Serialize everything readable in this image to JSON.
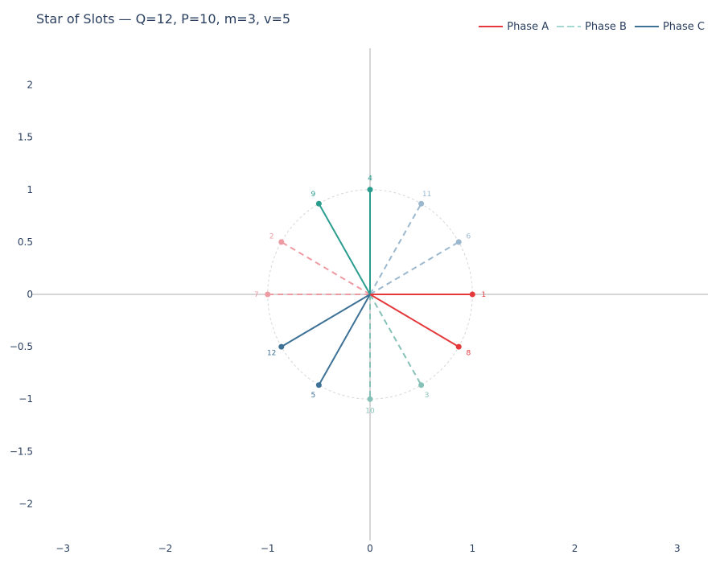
{
  "title": "Star of Slots — Q=12, P=10, m=3, v=5",
  "legend": [
    {
      "name": "Phase A",
      "color": "#e5383b",
      "dash": "solid"
    },
    {
      "name": "Phase B",
      "color": "#a3d9d1",
      "dash": "dash"
    },
    {
      "name": "Phase C",
      "color": "#3d7196",
      "dash": "solid"
    }
  ],
  "chart_data": {
    "type": "scatter",
    "title": "Star of Slots — Q=12, P=10, m=3, v=5",
    "xlabel": "",
    "ylabel": "",
    "xlim": [
      -3.3,
      3.3
    ],
    "ylim": [
      -2.35,
      2.35
    ],
    "x_ticks": [
      -3,
      -2,
      -1,
      0,
      1,
      2,
      3
    ],
    "y_ticks": [
      -2,
      -1.5,
      -1,
      -0.5,
      0,
      0.5,
      1,
      1.5,
      2
    ],
    "x_tick_labels": [
      "−3",
      "−2",
      "−1",
      "0",
      "1",
      "2",
      "3"
    ],
    "y_tick_labels": [
      "−2",
      "−1.5",
      "−1",
      "−0.5",
      "0",
      "0.5",
      "1",
      "1.5",
      "2"
    ],
    "grid": false,
    "unit_circle": true,
    "legend_position": "top-right",
    "colors": {
      "phase_a_pos": "#e5383b",
      "phase_a_neg": "#ee9aa2",
      "phase_b_pos": "#2a9d8f",
      "phase_b_neg": "#86c1b8",
      "phase_c_pos": "#3d7196",
      "phase_c_neg": "#9bb8ce",
      "zero_line": "#c8c8c8",
      "circle": "#d6d6d6"
    },
    "slots": [
      {
        "label": "1",
        "x": 1.0,
        "y": 0.0,
        "phase": "A",
        "polarity": "+"
      },
      {
        "label": "2",
        "x": -0.866,
        "y": 0.5,
        "phase": "A",
        "polarity": "-"
      },
      {
        "label": "3",
        "x": 0.5,
        "y": -0.866,
        "phase": "B",
        "polarity": "-"
      },
      {
        "label": "4",
        "x": 0.0,
        "y": 1.0,
        "phase": "B",
        "polarity": "+"
      },
      {
        "label": "5",
        "x": -0.5,
        "y": -0.866,
        "phase": "C",
        "polarity": "+"
      },
      {
        "label": "6",
        "x": 0.866,
        "y": 0.5,
        "phase": "C",
        "polarity": "-"
      },
      {
        "label": "7",
        "x": -1.0,
        "y": 0.0,
        "phase": "A",
        "polarity": "-"
      },
      {
        "label": "8",
        "x": 0.866,
        "y": -0.5,
        "phase": "A",
        "polarity": "+"
      },
      {
        "label": "9",
        "x": -0.5,
        "y": 0.866,
        "phase": "B",
        "polarity": "+"
      },
      {
        "label": "10",
        "x": 0.0,
        "y": -1.0,
        "phase": "B",
        "polarity": "-"
      },
      {
        "label": "11",
        "x": 0.5,
        "y": 0.866,
        "phase": "C",
        "polarity": "-"
      },
      {
        "label": "12",
        "x": -0.866,
        "y": -0.5,
        "phase": "C",
        "polarity": "+"
      }
    ]
  }
}
